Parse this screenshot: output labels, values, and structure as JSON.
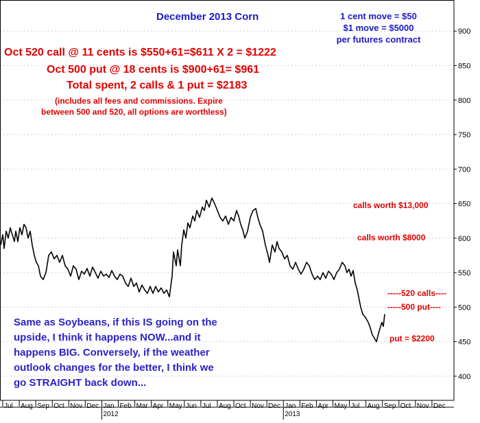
{
  "colors": {
    "price_line": "#000000",
    "grid": "#d2d2d2",
    "annotation_red": "#e00000",
    "annotation_blue": "#2a22c8",
    "title_blue": "#1a1ac8"
  },
  "chart_data": {
    "type": "line",
    "title": "December 2013 Corn",
    "xlabel": "",
    "ylabel": "",
    "ylim": [
      365,
      945
    ],
    "y_ticks": [
      400,
      450,
      500,
      550,
      600,
      650,
      700,
      750,
      800,
      850,
      900
    ],
    "x_ticks": [
      "Jul",
      "Aug",
      "Sep",
      "Oct",
      "Nov",
      "Dec",
      "Jan",
      "Feb",
      "Mar",
      "Apr",
      "May",
      "Jun",
      "Jul",
      "Aug",
      "Oct",
      "Nov",
      "Dec",
      "Jan",
      "Feb",
      "Apr",
      "May",
      "Jul",
      "Aug",
      "Sep",
      "Oct",
      "Nov",
      "Dec"
    ],
    "year_labels": [
      "2012",
      "2013"
    ],
    "grid": true,
    "series": [
      {
        "values": [
          [
            0,
            590
          ],
          [
            3,
            605
          ],
          [
            5,
            585
          ],
          [
            8,
            610
          ],
          [
            11,
            600
          ],
          [
            14,
            615
          ],
          [
            17,
            605
          ],
          [
            20,
            595
          ],
          [
            22,
            610
          ],
          [
            25,
            595
          ],
          [
            28,
            615
          ],
          [
            31,
            605
          ],
          [
            34,
            620
          ],
          [
            37,
            615
          ],
          [
            40,
            600
          ],
          [
            43,
            610
          ],
          [
            46,
            590
          ],
          [
            49,
            575
          ],
          [
            52,
            565
          ],
          [
            55,
            560
          ],
          [
            58,
            545
          ],
          [
            62,
            540
          ],
          [
            66,
            550
          ],
          [
            70,
            575
          ],
          [
            74,
            580
          ],
          [
            78,
            570
          ],
          [
            82,
            575
          ],
          [
            86,
            565
          ],
          [
            90,
            575
          ],
          [
            94,
            560
          ],
          [
            98,
            555
          ],
          [
            102,
            545
          ],
          [
            106,
            560
          ],
          [
            110,
            555
          ],
          [
            114,
            540
          ],
          [
            118,
            552
          ],
          [
            122,
            548
          ],
          [
            126,
            556
          ],
          [
            130,
            545
          ],
          [
            134,
            558
          ],
          [
            138,
            550
          ],
          [
            142,
            542
          ],
          [
            146,
            552
          ],
          [
            150,
            545
          ],
          [
            154,
            548
          ],
          [
            158,
            543
          ],
          [
            162,
            553
          ],
          [
            166,
            545
          ],
          [
            170,
            540
          ],
          [
            174,
            548
          ],
          [
            178,
            545
          ],
          [
            182,
            535
          ],
          [
            186,
            530
          ],
          [
            190,
            542
          ],
          [
            194,
            530
          ],
          [
            198,
            535
          ],
          [
            202,
            522
          ],
          [
            206,
            532
          ],
          [
            210,
            525
          ],
          [
            214,
            520
          ],
          [
            218,
            530
          ],
          [
            222,
            520
          ],
          [
            226,
            530
          ],
          [
            230,
            522
          ],
          [
            234,
            528
          ],
          [
            238,
            520
          ],
          [
            242,
            525
          ],
          [
            246,
            515
          ],
          [
            250,
            545
          ],
          [
            252,
            580
          ],
          [
            256,
            560
          ],
          [
            258,
            583
          ],
          [
            262,
            560
          ],
          [
            264,
            590
          ],
          [
            267,
            612
          ],
          [
            270,
            600
          ],
          [
            273,
            622
          ],
          [
            276,
            615
          ],
          [
            280,
            632
          ],
          [
            283,
            625
          ],
          [
            286,
            640
          ],
          [
            290,
            630
          ],
          [
            294,
            645
          ],
          [
            297,
            640
          ],
          [
            300,
            655
          ],
          [
            304,
            645
          ],
          [
            308,
            658
          ],
          [
            312,
            650
          ],
          [
            316,
            640
          ],
          [
            320,
            630
          ],
          [
            324,
            625
          ],
          [
            328,
            632
          ],
          [
            332,
            620
          ],
          [
            336,
            630
          ],
          [
            340,
            625
          ],
          [
            344,
            640
          ],
          [
            347,
            632
          ],
          [
            350,
            620
          ],
          [
            353,
            612
          ],
          [
            356,
            600
          ],
          [
            360,
            610
          ],
          [
            364,
            630
          ],
          [
            368,
            640
          ],
          [
            372,
            643
          ],
          [
            375,
            630
          ],
          [
            378,
            620
          ],
          [
            382,
            610
          ],
          [
            386,
            590
          ],
          [
            390,
            575
          ],
          [
            392,
            565
          ],
          [
            396,
            590
          ],
          [
            400,
            580
          ],
          [
            403,
            595
          ],
          [
            406,
            585
          ],
          [
            410,
            580
          ],
          [
            414,
            570
          ],
          [
            418,
            575
          ],
          [
            422,
            560
          ],
          [
            426,
            555
          ],
          [
            430,
            565
          ],
          [
            434,
            555
          ],
          [
            438,
            548
          ],
          [
            442,
            555
          ],
          [
            446,
            565
          ],
          [
            450,
            560
          ],
          [
            454,
            548
          ],
          [
            458,
            540
          ],
          [
            462,
            545
          ],
          [
            466,
            540
          ],
          [
            470,
            550
          ],
          [
            474,
            542
          ],
          [
            478,
            552
          ],
          [
            482,
            548
          ],
          [
            486,
            540
          ],
          [
            490,
            550
          ],
          [
            494,
            555
          ],
          [
            498,
            565
          ],
          [
            502,
            560
          ],
          [
            505,
            550
          ],
          [
            508,
            555
          ],
          [
            511,
            545
          ],
          [
            514,
            553
          ],
          [
            517,
            535
          ],
          [
            520,
            525
          ],
          [
            522,
            515
          ],
          [
            525,
            500
          ],
          [
            528,
            490
          ],
          [
            532,
            485
          ],
          [
            536,
            478
          ],
          [
            539,
            470
          ],
          [
            542,
            460
          ],
          [
            545,
            455
          ],
          [
            548,
            450
          ],
          [
            551,
            462
          ],
          [
            554,
            472
          ],
          [
            556,
            478
          ],
          [
            558,
            472
          ],
          [
            560,
            490
          ]
        ]
      }
    ],
    "annotations": {
      "scale_note": [
        "1 cent move = $50",
        "$1 move = $5000",
        "per futures contract"
      ],
      "trade_lines": [
        "Oct 520 call @ 11 cents is $550+61=$611 X 2 = $1222",
        "Oct 500 put @ 18 cents is $900+61= $961",
        "Total spent, 2 calls & 1 put = $2183",
        "(includes all fees and commissions. Expire",
        "between 500 and 520, all options are worthless)"
      ],
      "level_labels": [
        {
          "text": "calls worth $13,000",
          "y": 648
        },
        {
          "text": "calls worth $8000",
          "y": 598
        },
        {
          "text": "-----520 calls----",
          "y": 520
        },
        {
          "text": "-----500 put----",
          "y": 500
        },
        {
          "text": "put = $2200",
          "y": 453
        }
      ],
      "comment_lines": [
        "Same as Soybeans, if this IS going on the",
        "upside, I think it happens NOW...and it",
        "happens BIG. Conversely, if the weather",
        "outlook changes for the better, I think we",
        "go STRAIGHT back down..."
      ]
    }
  }
}
